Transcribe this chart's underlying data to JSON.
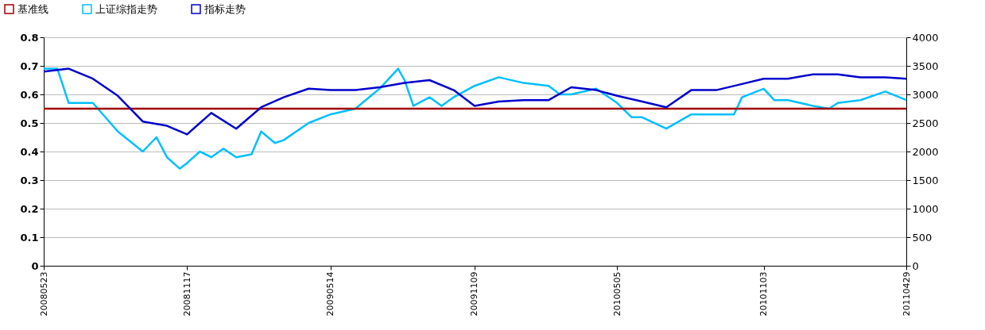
{
  "chart_data": {
    "type": "line",
    "legend": "top left",
    "grid": "y",
    "xlim": [
      "2008-05-23",
      "2011-04-29"
    ],
    "xticks": [
      {
        "value": "2008-05-23",
        "label": "20080523"
      },
      {
        "value": "2008-11-17",
        "label": "20081117"
      },
      {
        "value": "2009-05-14",
        "label": "20090514"
      },
      {
        "value": "2009-11-09",
        "label": "20091109"
      },
      {
        "value": "2010-05-05",
        "label": "20100505"
      },
      {
        "value": "2010-11-03",
        "label": "20101103"
      },
      {
        "value": "2011-04-29",
        "label": "20110429"
      }
    ],
    "ylim": [
      0,
      0.8
    ],
    "yticks": [
      0,
      0.1,
      0.2,
      0.3,
      0.4,
      0.5,
      0.6,
      0.7,
      0.8
    ],
    "y2lim": [
      0,
      4000
    ],
    "y2ticks": [
      0,
      500,
      1000,
      1500,
      2000,
      2500,
      3000,
      3500,
      4000
    ],
    "series": [
      {
        "name": "基准线",
        "color": "#a00000",
        "x": [
          "2008-05-23",
          "2011-04-29"
        ],
        "values": [
          0.55,
          0.55
        ]
      },
      {
        "name": "上证综指走势",
        "color": "#00bfff",
        "axis": "y2",
        "x": [
          "2008-05-23",
          "2008-06-09",
          "2008-06-23",
          "2008-07-23",
          "2008-08-23",
          "2008-09-23",
          "2008-10-10",
          "2008-10-23",
          "2008-11-08",
          "2008-11-17",
          "2008-12-03",
          "2008-12-17",
          "2009-01-01",
          "2009-01-17",
          "2009-02-05",
          "2009-02-17",
          "2009-03-06",
          "2009-03-17",
          "2009-04-17",
          "2009-05-14",
          "2009-06-14",
          "2009-07-14",
          "2009-08-06",
          "2009-08-14",
          "2009-08-25",
          "2009-09-14",
          "2009-09-29",
          "2009-10-14",
          "2009-11-09",
          "2009-12-09",
          "2010-01-09",
          "2010-02-09",
          "2010-02-23",
          "2010-03-09",
          "2010-04-09",
          "2010-05-05",
          "2010-05-23",
          "2010-06-05",
          "2010-07-05",
          "2010-08-05",
          "2010-09-05",
          "2010-09-27",
          "2010-10-07",
          "2010-11-03",
          "2010-11-16",
          "2010-12-03",
          "2011-01-03",
          "2011-01-23",
          "2011-02-03",
          "2011-03-03",
          "2011-04-03",
          "2011-04-29"
        ],
        "values": [
          3450,
          3450,
          2850,
          2850,
          2350,
          2000,
          2250,
          1900,
          1700,
          1800,
          2000,
          1900,
          2050,
          1900,
          1950,
          2350,
          2150,
          2200,
          2500,
          2650,
          2750,
          3100,
          3450,
          3250,
          2800,
          2950,
          2800,
          2950,
          3150,
          3300,
          3200,
          3150,
          3000,
          3000,
          3100,
          2850,
          2600,
          2600,
          2400,
          2650,
          2650,
          2650,
          2950,
          3100,
          2900,
          2900,
          2800,
          2750,
          2850,
          2900,
          3050,
          2900
        ]
      },
      {
        "name": "指标走势",
        "color": "#0000cc",
        "x": [
          "2008-05-23",
          "2008-06-23",
          "2008-07-23",
          "2008-08-23",
          "2008-09-23",
          "2008-10-23",
          "2008-11-17",
          "2008-12-17",
          "2009-01-17",
          "2009-02-17",
          "2009-03-17",
          "2009-04-17",
          "2009-05-14",
          "2009-06-14",
          "2009-07-14",
          "2009-08-14",
          "2009-09-14",
          "2009-10-14",
          "2009-11-09",
          "2009-12-09",
          "2010-01-09",
          "2010-02-09",
          "2010-03-09",
          "2010-04-09",
          "2010-05-05",
          "2010-06-05",
          "2010-07-05",
          "2010-08-05",
          "2010-09-05",
          "2010-10-05",
          "2010-11-03",
          "2010-12-03",
          "2011-01-03",
          "2011-02-03",
          "2011-03-03",
          "2011-04-03",
          "2011-04-29"
        ],
        "values": [
          0.68,
          0.69,
          0.655,
          0.595,
          0.505,
          0.49,
          0.46,
          0.535,
          0.48,
          0.555,
          0.59,
          0.62,
          0.615,
          0.615,
          0.625,
          0.64,
          0.65,
          0.615,
          0.56,
          0.575,
          0.58,
          0.58,
          0.625,
          0.615,
          0.595,
          0.575,
          0.555,
          0.615,
          0.615,
          0.635,
          0.655,
          0.655,
          0.67,
          0.67,
          0.66,
          0.66,
          0.655
        ]
      }
    ]
  }
}
